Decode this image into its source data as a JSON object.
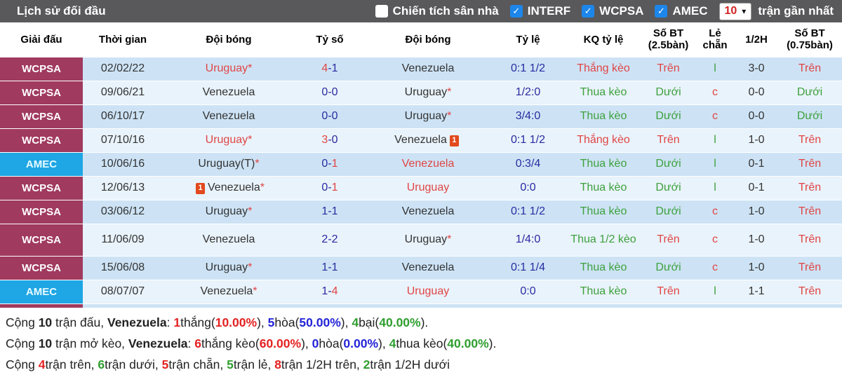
{
  "colors": {
    "topbar_bg": "#59595b",
    "checkbox_blue": "#1c86ea",
    "select_value_red": "#d42222",
    "league_wcpsa": "#a03a5e",
    "league_amec": "#1fa6e4",
    "row_odd": "#cde3f5",
    "row_even": "#e9f3fb",
    "win_red": "#e04545",
    "lose_green": "#3da03d",
    "odds_navy": "#2a2aa0",
    "summary_red": "#e42222",
    "summary_green": "#2f9e2f",
    "summary_blue": "#2424d8"
  },
  "icons": {
    "check": "✓",
    "chevron": "▾",
    "red_card": "1"
  },
  "topbar": {
    "title": "Lịch sử đối đầu",
    "filters": [
      {
        "label": "Chiến tích sân nhà",
        "checked": false
      },
      {
        "label": "INTERF",
        "checked": true
      },
      {
        "label": "WCPSA",
        "checked": true
      },
      {
        "label": "AMEC",
        "checked": true
      }
    ],
    "matches_count": "10",
    "matches_suffix": "trận gần nhất"
  },
  "table": {
    "headers": [
      "Giải đấu",
      "Thời gian",
      "Đội bóng",
      "Tỷ số",
      "Đội bóng",
      "Tỷ lệ",
      "KQ tỷ lệ",
      "Số BT (2.5bàn)",
      "Lẻ chẵn",
      "1/2H",
      "Số BT (0.75bàn)"
    ],
    "rows": [
      {
        "league": "WCPSA",
        "league_style": "wcpsa",
        "date": "02/02/22",
        "home": {
          "name": "Uruguay",
          "star": true,
          "red": true
        },
        "score": {
          "h": "4",
          "a": "1",
          "h_red": true
        },
        "away": {
          "name": "Venezuela"
        },
        "odds": "0:1 1/2",
        "result": {
          "text": "Thắng kèo",
          "color": "red"
        },
        "over25": {
          "text": "Trên",
          "color": "red"
        },
        "odd_even": {
          "text": "l",
          "color": "green"
        },
        "half": "3-0",
        "over075": {
          "text": "Trên",
          "color": "red"
        }
      },
      {
        "league": "WCPSA",
        "league_style": "wcpsa",
        "date": "09/06/21",
        "home": {
          "name": "Venezuela"
        },
        "score": {
          "h": "0",
          "a": "0"
        },
        "away": {
          "name": "Uruguay",
          "star": true
        },
        "odds": "1/2:0",
        "result": {
          "text": "Thua kèo",
          "color": "green"
        },
        "over25": {
          "text": "Dưới",
          "color": "green"
        },
        "odd_even": {
          "text": "c",
          "color": "red"
        },
        "half": "0-0",
        "over075": {
          "text": "Dưới",
          "color": "green"
        }
      },
      {
        "league": "WCPSA",
        "league_style": "wcpsa",
        "date": "06/10/17",
        "home": {
          "name": "Venezuela"
        },
        "score": {
          "h": "0",
          "a": "0"
        },
        "away": {
          "name": "Uruguay",
          "star": true
        },
        "odds": "3/4:0",
        "result": {
          "text": "Thua kèo",
          "color": "green"
        },
        "over25": {
          "text": "Dưới",
          "color": "green"
        },
        "odd_even": {
          "text": "c",
          "color": "red"
        },
        "half": "0-0",
        "over075": {
          "text": "Dưới",
          "color": "green"
        }
      },
      {
        "league": "WCPSA",
        "league_style": "wcpsa",
        "date": "07/10/16",
        "home": {
          "name": "Uruguay",
          "star": true,
          "red": true
        },
        "score": {
          "h": "3",
          "a": "0",
          "h_red": true
        },
        "away": {
          "name": "Venezuela",
          "card_after": true
        },
        "odds": "0:1 1/2",
        "result": {
          "text": "Thắng kèo",
          "color": "red"
        },
        "over25": {
          "text": "Trên",
          "color": "red"
        },
        "odd_even": {
          "text": "l",
          "color": "green"
        },
        "half": "1-0",
        "over075": {
          "text": "Trên",
          "color": "red"
        }
      },
      {
        "league": "AMEC",
        "league_style": "amec",
        "date": "10/06/16",
        "home": {
          "name": "Uruguay(T)",
          "star": true
        },
        "score": {
          "h": "0",
          "a": "1",
          "a_red": true
        },
        "away": {
          "name": "Venezuela",
          "red": true
        },
        "odds": "0:3/4",
        "result": {
          "text": "Thua kèo",
          "color": "green"
        },
        "over25": {
          "text": "Dưới",
          "color": "green"
        },
        "odd_even": {
          "text": "l",
          "color": "green"
        },
        "half": "0-1",
        "over075": {
          "text": "Trên",
          "color": "red"
        }
      },
      {
        "league": "WCPSA",
        "league_style": "wcpsa",
        "date": "12/06/13",
        "home": {
          "name": "Venezuela",
          "star": true,
          "card_before": true
        },
        "score": {
          "h": "0",
          "a": "1",
          "a_red": true
        },
        "away": {
          "name": "Uruguay",
          "red": true
        },
        "odds": "0:0",
        "result": {
          "text": "Thua kèo",
          "color": "green"
        },
        "over25": {
          "text": "Dưới",
          "color": "green"
        },
        "odd_even": {
          "text": "l",
          "color": "green"
        },
        "half": "0-1",
        "over075": {
          "text": "Trên",
          "color": "red"
        }
      },
      {
        "league": "WCPSA",
        "league_style": "wcpsa",
        "date": "03/06/12",
        "home": {
          "name": "Uruguay",
          "star": true
        },
        "score": {
          "h": "1",
          "a": "1"
        },
        "away": {
          "name": "Venezuela"
        },
        "odds": "0:1 1/2",
        "result": {
          "text": "Thua kèo",
          "color": "green"
        },
        "over25": {
          "text": "Dưới",
          "color": "green"
        },
        "odd_even": {
          "text": "c",
          "color": "red"
        },
        "half": "1-0",
        "over075": {
          "text": "Trên",
          "color": "red"
        }
      },
      {
        "league": "WCPSA",
        "league_style": "wcpsa",
        "date": "11/06/09",
        "tall": true,
        "home": {
          "name": "Venezuela"
        },
        "score": {
          "h": "2",
          "a": "2"
        },
        "away": {
          "name": "Uruguay",
          "star": true
        },
        "odds": "1/4:0",
        "result": {
          "text": "Thua 1/2 kèo",
          "color": "green"
        },
        "over25": {
          "text": "Trên",
          "color": "red"
        },
        "odd_even": {
          "text": "c",
          "color": "red"
        },
        "half": "1-0",
        "over075": {
          "text": "Trên",
          "color": "red"
        }
      },
      {
        "league": "WCPSA",
        "league_style": "wcpsa",
        "date": "15/06/08",
        "home": {
          "name": "Uruguay",
          "star": true
        },
        "score": {
          "h": "1",
          "a": "1"
        },
        "away": {
          "name": "Venezuela"
        },
        "odds": "0:1 1/4",
        "result": {
          "text": "Thua kèo",
          "color": "green"
        },
        "over25": {
          "text": "Dưới",
          "color": "green"
        },
        "odd_even": {
          "text": "c",
          "color": "red"
        },
        "half": "1-0",
        "over075": {
          "text": "Trên",
          "color": "red"
        }
      },
      {
        "league": "AMEC",
        "league_style": "amec",
        "date": "08/07/07",
        "home": {
          "name": "Venezuela",
          "star": true
        },
        "score": {
          "h": "1",
          "a": "4",
          "a_red": true
        },
        "away": {
          "name": "Uruguay",
          "red": true
        },
        "odds": "0:0",
        "result": {
          "text": "Thua kèo",
          "color": "green"
        },
        "over25": {
          "text": "Trên",
          "color": "red"
        },
        "odd_even": {
          "text": "l",
          "color": "green"
        },
        "half": "1-1",
        "over075": {
          "text": "Trên",
          "color": "red"
        }
      }
    ]
  },
  "summary": {
    "lines": [
      [
        {
          "t": "Cộng "
        },
        {
          "t": "10",
          "b": true
        },
        {
          "t": " trận đấu, "
        },
        {
          "t": "Venezuela",
          "b": true
        },
        {
          "t": ": "
        },
        {
          "t": "1",
          "c": "red",
          "b": true
        },
        {
          "t": "thắng("
        },
        {
          "t": "10.00%",
          "c": "red",
          "b": true
        },
        {
          "t": "), "
        },
        {
          "t": "5",
          "c": "blue",
          "b": true
        },
        {
          "t": "hòa("
        },
        {
          "t": "50.00%",
          "c": "blue",
          "b": true
        },
        {
          "t": "), "
        },
        {
          "t": "4",
          "c": "green",
          "b": true
        },
        {
          "t": "bại("
        },
        {
          "t": "40.00%",
          "c": "green",
          "b": true
        },
        {
          "t": ")."
        }
      ],
      [
        {
          "t": "Cộng "
        },
        {
          "t": "10",
          "b": true
        },
        {
          "t": " trận mở kèo, "
        },
        {
          "t": "Venezuela",
          "b": true
        },
        {
          "t": ": "
        },
        {
          "t": "6",
          "c": "red",
          "b": true
        },
        {
          "t": "thắng kèo("
        },
        {
          "t": "60.00%",
          "c": "red",
          "b": true
        },
        {
          "t": "), "
        },
        {
          "t": "0",
          "c": "blue",
          "b": true
        },
        {
          "t": "hòa("
        },
        {
          "t": "0.00%",
          "c": "blue",
          "b": true
        },
        {
          "t": "), "
        },
        {
          "t": "4",
          "c": "green",
          "b": true
        },
        {
          "t": "thua kèo("
        },
        {
          "t": "40.00%",
          "c": "green",
          "b": true
        },
        {
          "t": ")."
        }
      ],
      [
        {
          "t": "Cộng "
        },
        {
          "t": "4",
          "c": "red",
          "b": true
        },
        {
          "t": "trận trên, "
        },
        {
          "t": "6",
          "c": "green",
          "b": true
        },
        {
          "t": "trận dưới, "
        },
        {
          "t": "5",
          "c": "red",
          "b": true
        },
        {
          "t": "trận chẵn, "
        },
        {
          "t": "5",
          "c": "green",
          "b": true
        },
        {
          "t": "trận lẻ, "
        },
        {
          "t": "8",
          "c": "red",
          "b": true
        },
        {
          "t": "trận 1/2H trên, "
        },
        {
          "t": "2",
          "c": "green",
          "b": true
        },
        {
          "t": "trận 1/2H dưới"
        }
      ]
    ]
  }
}
